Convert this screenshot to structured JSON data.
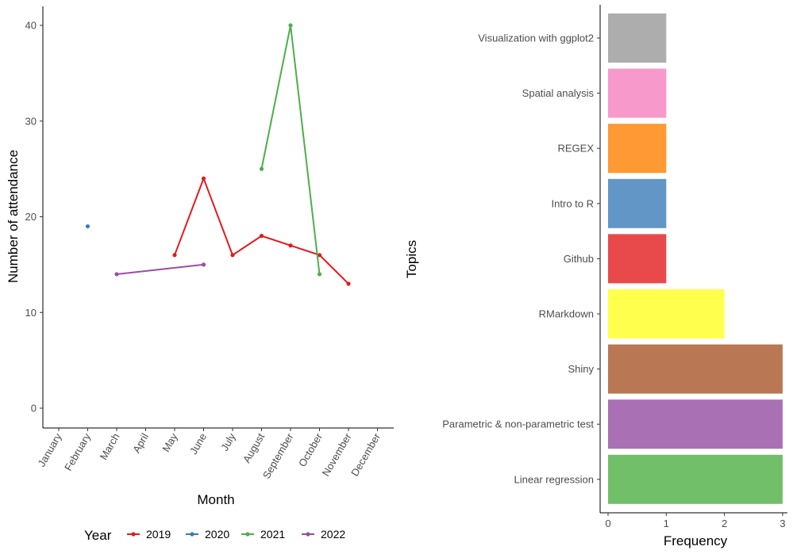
{
  "chart_data": [
    {
      "type": "line",
      "xlabel": "Month",
      "ylabel": "Number of attendance",
      "x": [
        "January",
        "February",
        "March",
        "April",
        "May",
        "June",
        "July",
        "August",
        "September",
        "October",
        "November",
        "December"
      ],
      "ylim": [
        0,
        40
      ],
      "yticks": [
        0,
        10,
        20,
        30,
        40
      ],
      "grid": false,
      "legend": {
        "title": "Year",
        "position": "bottom"
      },
      "series": [
        {
          "name": "2019",
          "color": "#e41a1c",
          "points": [
            [
              "May",
              16
            ],
            [
              "June",
              24
            ],
            [
              "July",
              16
            ],
            [
              "August",
              18
            ],
            [
              "September",
              17
            ],
            [
              "October",
              16
            ],
            [
              "November",
              13
            ]
          ]
        },
        {
          "name": "2020",
          "color": "#377eb8",
          "points": [
            [
              "February",
              19
            ]
          ]
        },
        {
          "name": "2021",
          "color": "#4daf4a",
          "points": [
            [
              "August",
              25
            ],
            [
              "September",
              40
            ],
            [
              "October",
              14
            ]
          ]
        },
        {
          "name": "2022",
          "color": "#984ea3",
          "points": [
            [
              "March",
              14
            ],
            [
              "June",
              15
            ]
          ]
        }
      ]
    },
    {
      "type": "bar",
      "orientation": "horizontal",
      "xlabel": "Frequency",
      "ylabel": "Topics",
      "xlim": [
        0,
        3
      ],
      "xticks": [
        0,
        1,
        2,
        3
      ],
      "grid": false,
      "categories": [
        "Linear regression",
        "Parametric & non-parametric test",
        "Shiny",
        "RMarkdown",
        "Github",
        "Intro to R",
        "REGEX",
        "Spatial analysis",
        "Visualization with ggplot2"
      ],
      "values": [
        3,
        3,
        3,
        2,
        1,
        1,
        1,
        1,
        1
      ],
      "colors": [
        "#72bf6a",
        "#a970b4",
        "#b97753",
        "#ffff4d",
        "#e84a4b",
        "#6196c6",
        "#ff9933",
        "#f799cb",
        "#adadad"
      ]
    }
  ]
}
